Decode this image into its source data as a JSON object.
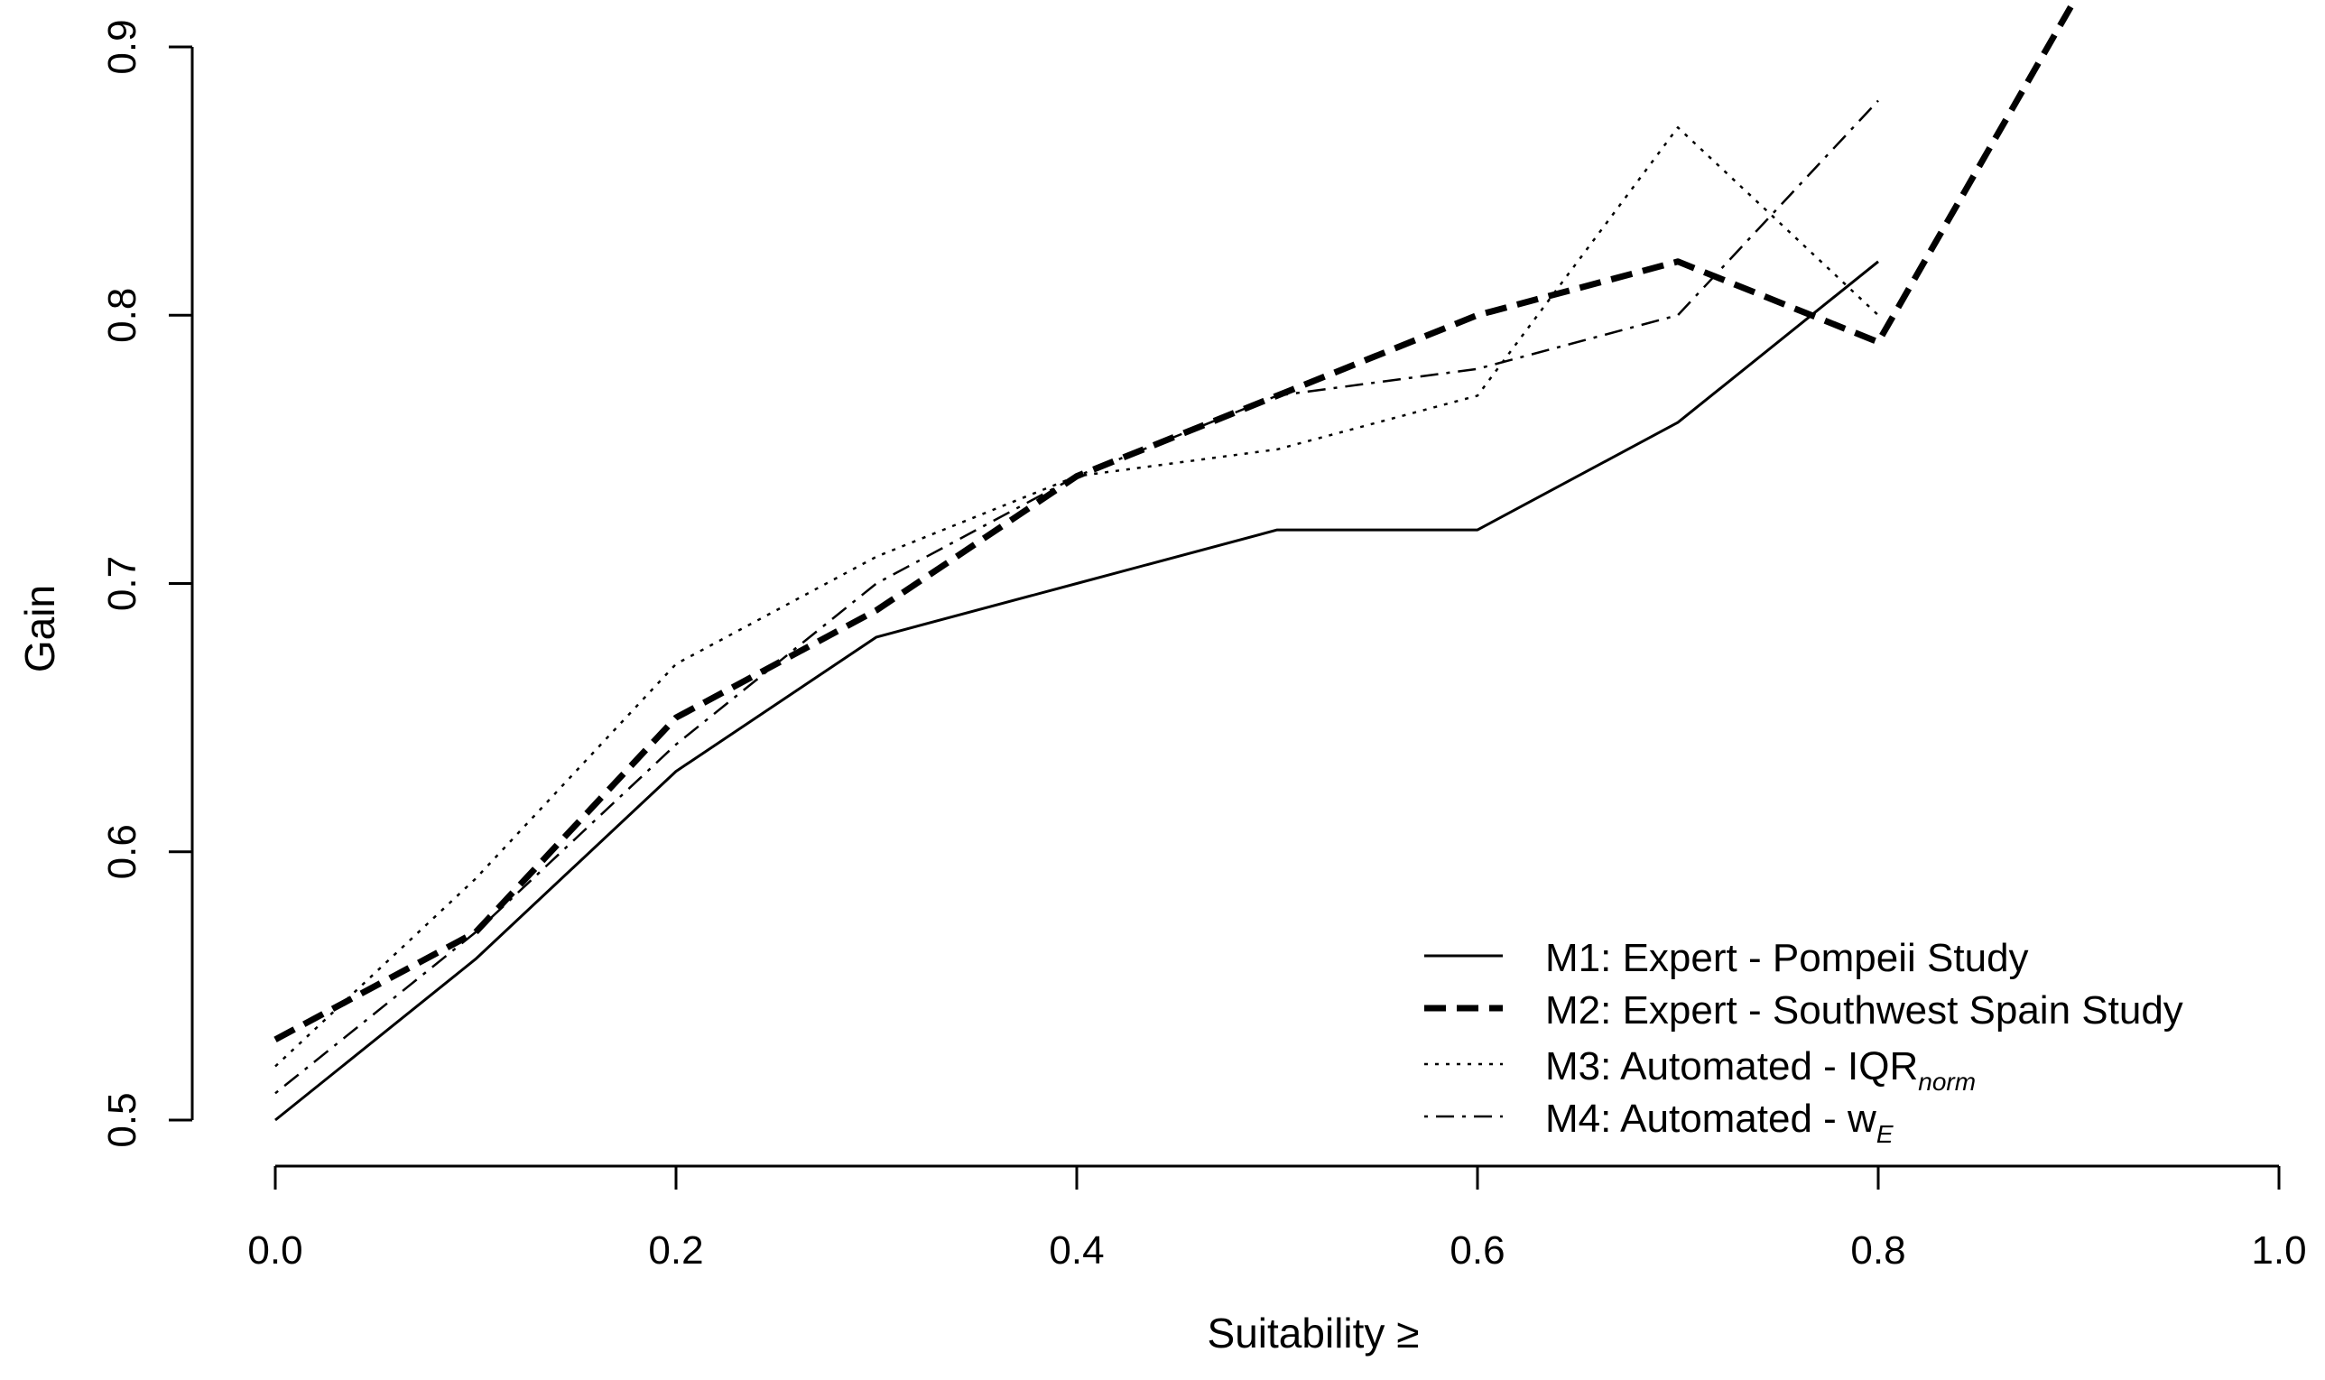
{
  "chart_data": {
    "type": "line",
    "title": "",
    "xlabel": "Suitability ≥",
    "ylabel": "Gain",
    "xlim": [
      0.0,
      1.0
    ],
    "ylim": [
      0.5,
      0.9
    ],
    "x_ticks": [
      "0.0",
      "0.2",
      "0.4",
      "0.6",
      "0.8",
      "1.0"
    ],
    "y_ticks": [
      "0.5",
      "0.6",
      "0.7",
      "0.8",
      "0.9"
    ],
    "grid": false,
    "legend_position": "bottom-right",
    "series": [
      {
        "name": "M1: Expert - Pompeii Study",
        "label_main": "M1: Expert - Pompeii Study",
        "label_sub": "",
        "style": "solid",
        "x": [
          0.0,
          0.1,
          0.2,
          0.3,
          0.4,
          0.5,
          0.6,
          0.7,
          0.8
        ],
        "y": [
          0.5,
          0.56,
          0.63,
          0.68,
          0.7,
          0.72,
          0.72,
          0.76,
          0.82
        ]
      },
      {
        "name": "M2: Expert - Southwest Spain Study",
        "label_main": "M2: Expert - Southwest Spain Study",
        "label_sub": "",
        "style": "dashed-bold",
        "x": [
          0.0,
          0.1,
          0.2,
          0.3,
          0.4,
          0.5,
          0.6,
          0.7,
          0.8,
          0.9
        ],
        "y": [
          0.53,
          0.57,
          0.65,
          0.69,
          0.74,
          0.77,
          0.8,
          0.82,
          0.79,
          0.92
        ]
      },
      {
        "name": "M3: Automated - IQRnorm",
        "label_main": "M3: Automated - IQR",
        "label_sub": "norm",
        "style": "dotted",
        "x": [
          0.0,
          0.1,
          0.2,
          0.3,
          0.4,
          0.5,
          0.6,
          0.7,
          0.8
        ],
        "y": [
          0.52,
          0.59,
          0.67,
          0.71,
          0.74,
          0.75,
          0.77,
          0.87,
          0.8
        ]
      },
      {
        "name": "M4: Automated - wE",
        "label_main": "M4: Automated - w",
        "label_sub": "E",
        "style": "dotdash",
        "x": [
          0.0,
          0.1,
          0.2,
          0.3,
          0.4,
          0.5,
          0.6,
          0.7,
          0.8
        ],
        "y": [
          0.51,
          0.57,
          0.64,
          0.7,
          0.74,
          0.77,
          0.78,
          0.8,
          0.88
        ]
      }
    ]
  }
}
